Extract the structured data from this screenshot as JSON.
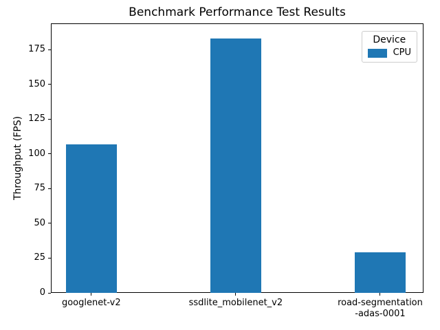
{
  "chart_data": {
    "type": "bar",
    "title": "Benchmark Performance Test Results",
    "xlabel": "",
    "ylabel": "Throughput (FPS)",
    "categories": [
      "googlenet-v2",
      "ssdlite_mobilenet_v2",
      "road-segmentation\n-adas-0001"
    ],
    "series": [
      {
        "name": "CPU",
        "color": "#1f77b4",
        "values": [
          106.9,
          183.2,
          29.3
        ]
      }
    ],
    "yticks": [
      0,
      25,
      50,
      75,
      100,
      125,
      150,
      175
    ],
    "ylim": [
      0,
      194
    ],
    "xlim": [
      -0.28,
      2.3
    ],
    "bar_width": 0.35,
    "grid": false,
    "legend": {
      "title": "Device",
      "position": "upper right"
    },
    "colors": {
      "bar": "#1f77b4",
      "spine": "#000000",
      "legend_border": "#cccccc",
      "background": "#ffffff",
      "text": "#000000"
    }
  }
}
